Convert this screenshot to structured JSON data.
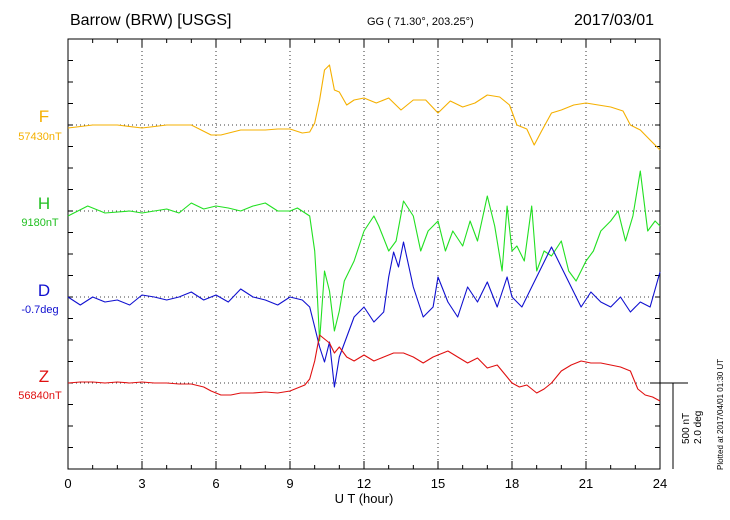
{
  "header": {
    "station": "Barrow (BRW)  [USGS]",
    "coords": "GG ( 71.30°, 203.25°)",
    "date": "2017/03/01"
  },
  "scale": {
    "nt": "500 nT",
    "deg": "2.0 deg"
  },
  "plotted": "Plotted at 2017/04/01 01:30 UT",
  "colors": {
    "F": "#f5b000",
    "H": "#22e022",
    "D": "#1010d0",
    "Z": "#e01010"
  },
  "chart_data": {
    "type": "line",
    "xlabel": "U T (hour)",
    "xlim": [
      0,
      24
    ],
    "xticks": [
      "0",
      "3",
      "6",
      "9",
      "12",
      "15",
      "18",
      "21",
      "24"
    ],
    "series": [
      {
        "name": "F",
        "baseline_label": "57430nT",
        "x": [
          0,
          1,
          2,
          3,
          4,
          5,
          5.8,
          6.2,
          7,
          8,
          8.5,
          9,
          9.5,
          9.8,
          10,
          10.2,
          10.4,
          10.6,
          10.8,
          11,
          11.3,
          11.6,
          12,
          12.5,
          13,
          13.5,
          14,
          14.5,
          15,
          15.5,
          16,
          16.5,
          17,
          17.5,
          17.9,
          18.2,
          18.6,
          18.9,
          19.2,
          19.6,
          20,
          20.5,
          21,
          21.5,
          22,
          22.5,
          22.8,
          23.2,
          23.6,
          24
        ],
        "y": [
          -3,
          0,
          0,
          -3,
          0,
          0,
          -10,
          -10,
          -5,
          -5,
          -4,
          -4,
          -8,
          -7,
          2,
          25,
          55,
          60,
          35,
          33,
          20,
          25,
          27,
          22,
          27,
          15,
          25,
          25,
          12,
          24,
          18,
          22,
          30,
          28,
          20,
          0,
          -4,
          -20,
          -6,
          12,
          15,
          20,
          22,
          20,
          18,
          14,
          0,
          -5,
          -15,
          -25
        ]
      },
      {
        "name": "H",
        "baseline_label": "9180nT",
        "x": [
          0,
          0.8,
          1.5,
          2.5,
          3,
          3.5,
          4,
          4.5,
          5,
          5.5,
          6,
          6.5,
          7,
          7.5,
          8,
          8.5,
          9,
          9.3,
          9.8,
          10,
          10.1,
          10.2,
          10.4,
          10.6,
          10.8,
          11,
          11.2,
          11.6,
          12,
          12.4,
          12.6,
          13,
          13.3,
          13.6,
          14,
          14.3,
          14.6,
          15,
          15.3,
          15.6,
          16,
          16.3,
          16.6,
          17,
          17.3,
          17.6,
          17.8,
          18,
          18.2,
          18.5,
          18.8,
          19,
          19.3,
          19.6,
          20,
          20.3,
          20.6,
          21,
          21.3,
          21.6,
          22,
          22.3,
          22.6,
          22.9,
          23.2,
          23.5,
          23.8,
          24
        ],
        "y": [
          -5,
          5,
          -2,
          0,
          -2,
          0,
          2,
          -2,
          8,
          2,
          5,
          3,
          0,
          5,
          8,
          0,
          0,
          3,
          -5,
          -40,
          -80,
          -130,
          -60,
          -80,
          -120,
          -100,
          -70,
          -50,
          -20,
          -5,
          -15,
          -40,
          -30,
          10,
          -5,
          -40,
          -20,
          -10,
          -40,
          -20,
          -35,
          -10,
          -30,
          15,
          -15,
          -60,
          5,
          -40,
          -35,
          -50,
          5,
          -60,
          -40,
          -45,
          -30,
          -60,
          -70,
          -50,
          -40,
          -20,
          -10,
          0,
          -30,
          -5,
          40,
          -20,
          -10,
          -15
        ]
      },
      {
        "name": "D",
        "baseline_label": "-0.7deg",
        "x": [
          0,
          0.5,
          1,
          1.5,
          2,
          2.5,
          3,
          3.5,
          4,
          4.5,
          5,
          5.5,
          6,
          6.5,
          7,
          7.5,
          8,
          8.5,
          9,
          9.5,
          9.8,
          10,
          10.2,
          10.4,
          10.6,
          10.8,
          11,
          11.3,
          11.6,
          12,
          12.4,
          12.8,
          13,
          13.2,
          13.4,
          13.6,
          14,
          14.4,
          14.8,
          15,
          15.4,
          15.8,
          16.2,
          16.6,
          17,
          17.4,
          17.8,
          18,
          18.4,
          18.8,
          19.2,
          19.6,
          20,
          20.4,
          20.8,
          21.2,
          21.6,
          22,
          22.4,
          22.8,
          23.2,
          23.6,
          24
        ],
        "y": [
          0,
          -8,
          0,
          -5,
          -3,
          -8,
          2,
          0,
          -3,
          0,
          5,
          -3,
          2,
          -5,
          8,
          0,
          -3,
          -8,
          0,
          -3,
          -10,
          -30,
          -50,
          -65,
          -45,
          -90,
          -60,
          -40,
          -20,
          -10,
          -25,
          -15,
          20,
          45,
          30,
          55,
          10,
          -20,
          -10,
          20,
          -5,
          -20,
          10,
          -5,
          15,
          -10,
          20,
          0,
          -10,
          10,
          30,
          50,
          30,
          10,
          -10,
          5,
          -5,
          -10,
          0,
          -15,
          -5,
          -10,
          25
        ]
      },
      {
        "name": "Z",
        "baseline_label": "56840nT",
        "x": [
          0,
          0.5,
          1,
          1.5,
          2,
          2.5,
          3,
          3.5,
          4,
          4.5,
          5,
          5.5,
          5.8,
          6.2,
          6.6,
          7,
          7.5,
          8,
          8.5,
          9,
          9.3,
          9.6,
          9.8,
          10,
          10.2,
          10.4,
          10.6,
          10.8,
          11,
          11.3,
          11.6,
          12,
          12.4,
          12.8,
          13.2,
          13.6,
          14,
          14.4,
          14.8,
          15,
          15.4,
          15.8,
          16.2,
          16.6,
          17,
          17.4,
          17.8,
          18,
          18.3,
          18.6,
          19,
          19.3,
          19.6,
          20,
          20.4,
          20.8,
          21.2,
          21.6,
          22,
          22.4,
          22.8,
          23.1,
          23.4,
          23.7,
          24
        ],
        "y": [
          0,
          1,
          1,
          0,
          1,
          0,
          1,
          0,
          0,
          -1,
          -1,
          -4,
          -8,
          -12,
          -12,
          -10,
          -10,
          -9,
          -10,
          -8,
          -5,
          -2,
          4,
          22,
          48,
          44,
          40,
          30,
          36,
          26,
          22,
          28,
          22,
          26,
          30,
          30,
          26,
          20,
          26,
          28,
          32,
          26,
          20,
          25,
          15,
          18,
          6,
          0,
          -4,
          -2,
          -10,
          -6,
          0,
          12,
          18,
          22,
          20,
          20,
          18,
          16,
          12,
          -6,
          -12,
          -14,
          -18
        ]
      }
    ]
  }
}
